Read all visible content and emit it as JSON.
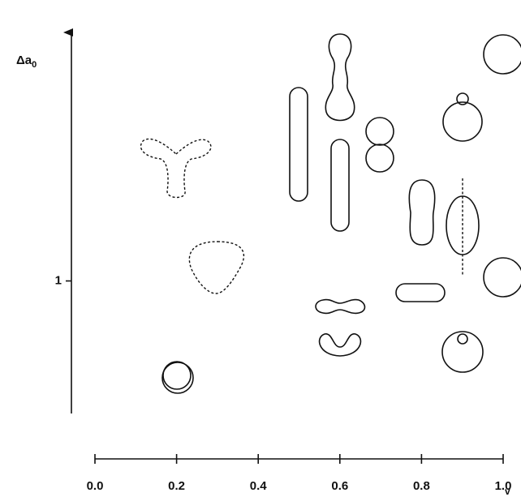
{
  "chart_data": {
    "type": "phase-diagram",
    "x_label": "v",
    "y_label": "Δa",
    "y_label_subscript": "0",
    "xlim": [
      0,
      1
    ],
    "xticks": [
      {
        "value": 0,
        "label": "0.0"
      },
      {
        "value": 0.2,
        "label": "0.2"
      },
      {
        "value": 0.4,
        "label": "0.4"
      },
      {
        "value": 0.6,
        "label": "0.6"
      },
      {
        "value": 0.8,
        "label": "0.8"
      },
      {
        "value": 1,
        "label": "1.0"
      }
    ],
    "ylim": [
      0.6,
      1.75
    ],
    "yticks": [
      1
    ]
  }
}
